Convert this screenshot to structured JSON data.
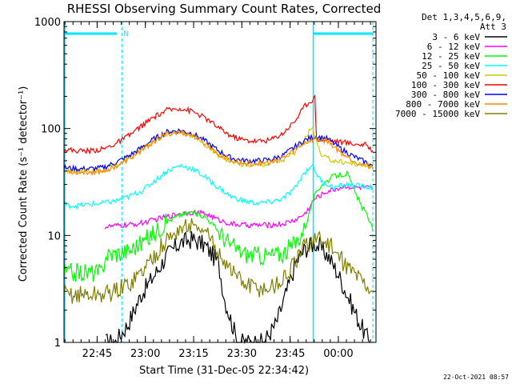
{
  "chart_data": {
    "type": "line",
    "title": "RHESSI Observing Summary Count Rates, Corrected",
    "xlabel": "Start Time (31-Dec-05 22:34:42)",
    "ylabel": "Corrected Count Rate (s⁻¹ detector⁻¹)",
    "y_scale": "log",
    "ylim": [
      1,
      1000
    ],
    "y_ticks": [
      "1",
      "10",
      "100",
      "1000"
    ],
    "x_ticks": [
      "22:45",
      "23:00",
      "23:15",
      "23:30",
      "23:45",
      "00:00"
    ],
    "x_tick_minutes": [
      10.3,
      25.3,
      40.3,
      55.3,
      70.3,
      85.3
    ],
    "xlim_minutes": [
      0,
      97
    ],
    "legend_header": [
      "Det 1,3,4,5,6,9,",
      "Att 3"
    ],
    "night_marks_minutes": [
      0,
      18,
      77.5,
      96
    ],
    "saa_label": "N",
    "timestamp": "22-Oct-2021 08:57",
    "series": [
      {
        "name": "3 - 6 keV",
        "color": "#000000",
        "x": [
          13,
          16,
          20,
          24,
          28,
          32,
          36,
          40,
          44,
          48,
          50,
          54,
          58,
          62,
          66,
          70,
          72,
          75,
          78,
          82,
          85,
          88,
          92,
          95
        ],
        "y": [
          1,
          1,
          1.5,
          2.8,
          4.2,
          6.5,
          8.5,
          9.2,
          8.0,
          5.5,
          2.5,
          1,
          1,
          1,
          1.5,
          3.5,
          5.5,
          7.5,
          8.5,
          6.5,
          4.5,
          2.8,
          1.5,
          1
        ]
      },
      {
        "name": "6 - 12 keV",
        "color": "#ff00ff",
        "x": [
          12.7,
          16,
          20,
          24,
          28,
          32,
          36,
          40,
          44,
          48,
          52,
          56,
          60,
          64,
          68,
          72,
          75,
          78,
          82,
          86,
          88,
          90,
          94,
          96
        ],
        "y": [
          12,
          12.3,
          12.5,
          13,
          14,
          15,
          16,
          16.5,
          16,
          14,
          12.8,
          12.5,
          12.5,
          12.5,
          12.8,
          14,
          16,
          22,
          26,
          28,
          29,
          28,
          28,
          27
        ]
      },
      {
        "name": "12 - 25 keV",
        "color": "#00ff00",
        "x": [
          0,
          4,
          8,
          12,
          12.7,
          16,
          20,
          24,
          28,
          32,
          36,
          40,
          44,
          48,
          52,
          56,
          60,
          64,
          68,
          72,
          75,
          77.5,
          80,
          84,
          88,
          92,
          95,
          96
        ],
        "y": [
          4.5,
          4.5,
          4.5,
          4.5,
          6.5,
          6.8,
          7.2,
          8.5,
          10.5,
          13.5,
          15.5,
          16.5,
          15,
          11,
          8,
          6.8,
          6.5,
          6.5,
          6.8,
          8.5,
          12,
          22,
          30,
          36,
          38,
          20,
          14,
          11
        ]
      },
      {
        "name": "25 - 50 keV",
        "color": "#00ffff",
        "x": [
          0,
          4,
          8,
          12,
          16,
          20,
          24,
          28,
          32,
          36,
          40,
          44,
          48,
          52,
          56,
          60,
          64,
          68,
          72,
          74,
          77,
          80,
          84,
          88,
          92,
          96
        ],
        "y": [
          19,
          19,
          19.5,
          20,
          21,
          23,
          26,
          32,
          40,
          45,
          42,
          35,
          28,
          23,
          21,
          20,
          20.5,
          22,
          28,
          36,
          46,
          32,
          28,
          30,
          29,
          28
        ]
      },
      {
        "name": "50 - 100 keV",
        "color": "#cccc00",
        "x": [
          0,
          4,
          8,
          12,
          16,
          20,
          24,
          28,
          32,
          36,
          40,
          44,
          48,
          52,
          56,
          60,
          64,
          68,
          72,
          75,
          77,
          80,
          84,
          88,
          92,
          96
        ],
        "y": [
          41,
          40,
          40,
          41,
          45,
          52,
          63,
          78,
          90,
          92,
          85,
          70,
          57,
          49,
          46,
          46,
          47,
          51,
          60,
          80,
          105,
          55,
          50,
          48,
          46,
          44
        ]
      },
      {
        "name": "100 - 300 keV",
        "color": "#ff0000",
        "x": [
          0,
          4,
          8,
          12,
          16,
          20,
          24,
          28,
          32,
          36,
          40,
          44,
          48,
          52,
          56,
          60,
          64,
          68,
          72,
          75,
          78,
          78.5,
          82,
          86,
          90,
          94,
          96
        ],
        "y": [
          64,
          62,
          62,
          64,
          72,
          85,
          105,
          128,
          148,
          155,
          145,
          125,
          102,
          85,
          78,
          76,
          78,
          90,
          120,
          165,
          195,
          80,
          78,
          75,
          72,
          70,
          62
        ]
      },
      {
        "name": "300 - 800 keV",
        "color": "#0000ff",
        "x": [
          0,
          4,
          8,
          12,
          16,
          20,
          24,
          28,
          32,
          36,
          40,
          44,
          48,
          52,
          56,
          60,
          64,
          68,
          72,
          75,
          78,
          82,
          86,
          90,
          94,
          96
        ],
        "y": [
          43,
          42,
          42,
          43,
          48,
          55,
          66,
          80,
          93,
          96,
          90,
          76,
          62,
          53,
          50,
          50,
          51,
          56,
          68,
          78,
          85,
          80,
          65,
          55,
          48,
          45
        ]
      },
      {
        "name": "800 - 7000 keV",
        "color": "#ff8800",
        "x": [
          0,
          4,
          8,
          12,
          16,
          20,
          24,
          28,
          32,
          36,
          40,
          44,
          48,
          52,
          56,
          60,
          64,
          68,
          72,
          75,
          78,
          82,
          86,
          90,
          94,
          96
        ],
        "y": [
          40,
          39,
          39,
          40,
          44,
          51,
          62,
          76,
          89,
          92,
          86,
          72,
          58,
          50,
          47,
          47,
          48,
          53,
          64,
          74,
          80,
          76,
          60,
          50,
          45,
          42
        ]
      },
      {
        "name": "7000 - 15000 keV",
        "color": "#808000",
        "x": [
          0,
          4,
          8,
          12,
          16,
          20,
          24,
          28,
          32,
          36,
          40,
          44,
          48,
          52,
          56,
          60,
          64,
          68,
          72,
          75,
          78,
          82,
          86,
          90,
          94,
          96
        ],
        "y": [
          2.8,
          2.8,
          2.8,
          2.8,
          3,
          3.5,
          4.5,
          6.5,
          9,
          11.5,
          12.5,
          10.5,
          7,
          4.8,
          3.5,
          3.2,
          3.2,
          3.8,
          5.5,
          8,
          9.5,
          8.5,
          6,
          4.5,
          3.5,
          3
        ]
      }
    ]
  }
}
